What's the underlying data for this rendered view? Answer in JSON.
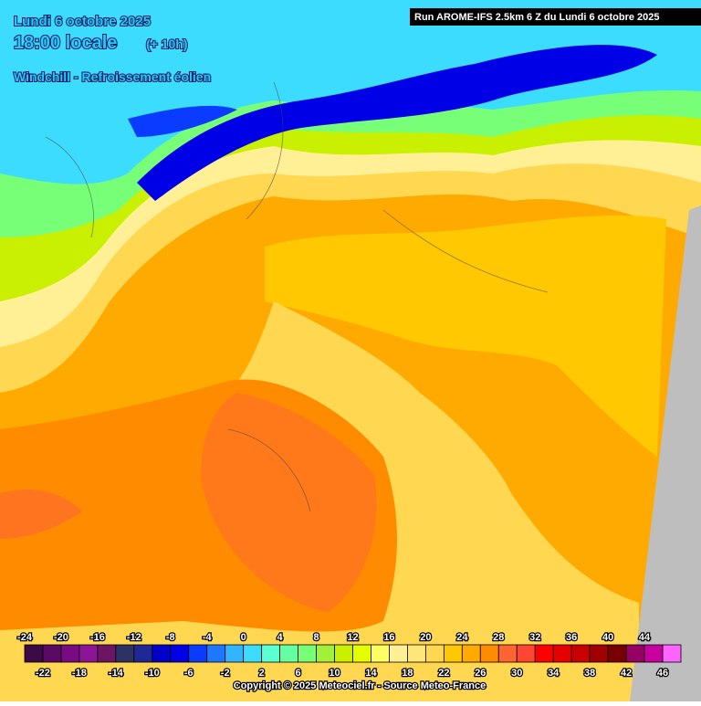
{
  "header": {
    "date": "Lundi 6 octobre 2025",
    "time": "18:00 locale",
    "offset": "(+ 10h)",
    "parameter": "Windchill - Refroissement éolien",
    "run": "Run AROME-IFS 2.5km 6 Z du Lundi 6 octobre 2025"
  },
  "legend": {
    "values": [
      -24,
      -22,
      -20,
      -18,
      -16,
      -14,
      -12,
      -10,
      -8,
      -6,
      -4,
      -2,
      0,
      2,
      4,
      6,
      8,
      10,
      12,
      14,
      16,
      18,
      20,
      22,
      24,
      26,
      28,
      30,
      32,
      34,
      36,
      38,
      40,
      42,
      44,
      46
    ],
    "colors": [
      "#3c0a46",
      "#5a0a64",
      "#780a82",
      "#8c1496",
      "#6e1464",
      "#2d3264",
      "#1e2896",
      "#0000c8",
      "#0000e6",
      "#0a3cff",
      "#1e78ff",
      "#32b4ff",
      "#3cdcff",
      "#5affd2",
      "#64ffa0",
      "#78ff78",
      "#a0f03c",
      "#c8f000",
      "#e6ff00",
      "#ffff64",
      "#fff096",
      "#ffe678",
      "#ffd750",
      "#ffc800",
      "#ffaa00",
      "#ff8c00",
      "#ff6432",
      "#ff4632",
      "#ff0000",
      "#e60000",
      "#c80000",
      "#a00000",
      "#780000",
      "#960064",
      "#c800a0",
      "#ff64ff"
    ]
  },
  "footer": {
    "copyright": "Copyright © 2025 Meteociel.fr - Source Meteo-France"
  }
}
